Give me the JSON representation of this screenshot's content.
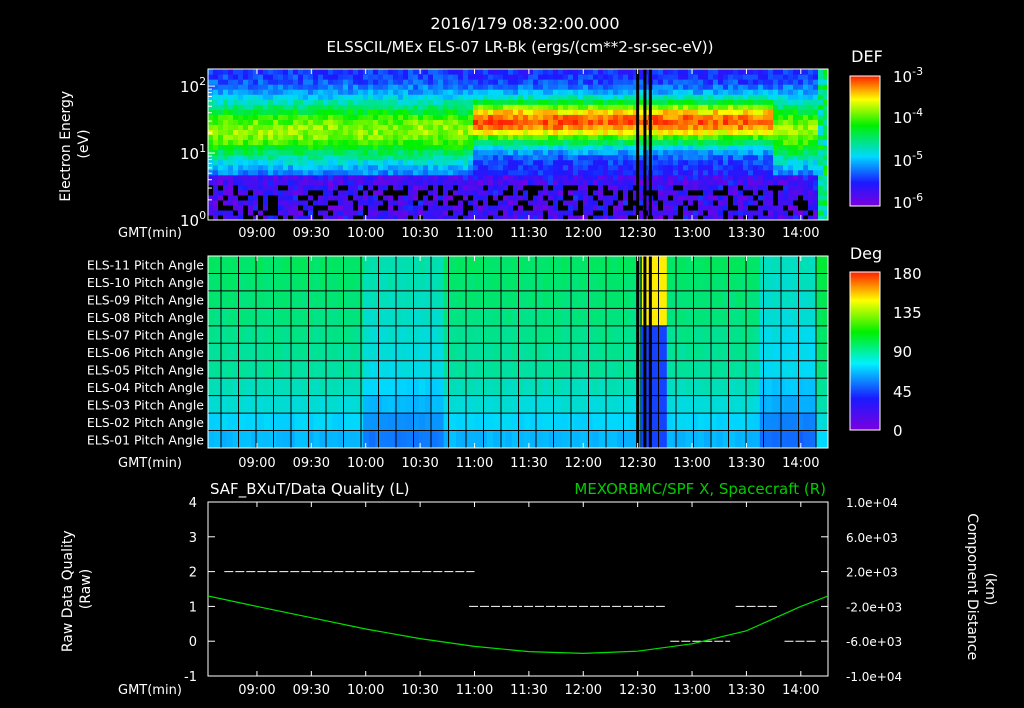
{
  "header": {
    "timestamp": "2016/179 08:32:00.000",
    "title": "ELSSCIL/MEx ELS-07 LR-Bk  (ergs/(cm**2-sr-sec-eV))"
  },
  "time_axis": {
    "label": "GMT(min)",
    "ticks": [
      "09:00",
      "09:30",
      "10:00",
      "10:30",
      "11:00",
      "11:30",
      "12:00",
      "12:30",
      "13:00",
      "13:30",
      "14:00"
    ]
  },
  "chart_data": [
    {
      "type": "heatmap",
      "name": "electron-spectrogram",
      "ylabel_lines": [
        "Electron Energy",
        "(eV)"
      ],
      "y_scale": "log",
      "yticks": [
        {
          "base": "10",
          "exp": "2"
        },
        {
          "base": "10",
          "exp": "1"
        },
        {
          "base": "10",
          "exp": "0"
        }
      ],
      "ylim": [
        1,
        180
      ],
      "colorbar": {
        "title": "DEF",
        "scale": "log",
        "ticks": [
          {
            "base": "10",
            "exp": "-3"
          },
          {
            "base": "10",
            "exp": "-4"
          },
          {
            "base": "10",
            "exp": "-5"
          },
          {
            "base": "10",
            "exp": "-6"
          }
        ]
      },
      "xlim_hours": [
        8.55,
        14.25
      ],
      "features": [
        {
          "kind": "band",
          "energy_eV": [
            15,
            60
          ],
          "level": "green-yellow",
          "from": "11:00",
          "to": "13:45"
        },
        {
          "kind": "band",
          "energy_eV": [
            3,
            10
          ],
          "level": "blue",
          "from": "08:35",
          "to": "14:10"
        },
        {
          "kind": "data-gap",
          "times": [
            "12:30",
            "12:34",
            "12:37"
          ]
        }
      ]
    },
    {
      "type": "heatmap",
      "name": "pitch-angle",
      "rows": [
        "ELS-11 Pitch Angle",
        "ELS-10 Pitch Angle",
        "ELS-09 Pitch Angle",
        "ELS-08 Pitch Angle",
        "ELS-07 Pitch Angle",
        "ELS-06 Pitch Angle",
        "ELS-05 Pitch Angle",
        "ELS-04 Pitch Angle",
        "ELS-03 Pitch Angle",
        "ELS-02 Pitch Angle",
        "ELS-01 Pitch Angle"
      ],
      "colorbar": {
        "title": "Deg",
        "ticks": [
          "180",
          "135",
          "90",
          "45",
          "0"
        ],
        "range": [
          0,
          180
        ]
      },
      "pitch_angle_deg_approx": [
        95,
        93,
        92,
        90,
        88,
        86,
        85,
        80,
        75,
        68,
        62
      ]
    },
    {
      "type": "line",
      "left_title": "SAF_BXuT/Data Quality (L)",
      "right_title": "MEXORBMC/SPF X, Spacecraft (R)",
      "ylabel_left_lines": [
        "Raw Data Quality",
        "(Raw)"
      ],
      "ylabel_right_lines": [
        "Component Distance",
        "(km)"
      ],
      "ylim_left": [
        -1,
        4
      ],
      "yticks_left": [
        "4",
        "3",
        "2",
        "1",
        "0",
        "-1"
      ],
      "ylim_right": [
        -10000,
        10000
      ],
      "yticks_right": [
        "1.0e+04",
        "6.0e+03",
        "2.0e+03",
        "-2.0e+03",
        "-6.0e+03",
        "-1.0e+04"
      ],
      "series": [
        {
          "name": "SAF_BXuT/Data Quality",
          "color": "#ffffff",
          "style": "dashed",
          "segments": [
            {
              "from": 8.7,
              "to": 11.0,
              "y": 2
            },
            {
              "from": 10.95,
              "to": 12.75,
              "y": 1
            },
            {
              "from": 13.4,
              "to": 13.78,
              "y": 1
            },
            {
              "from": 12.8,
              "to": 13.35,
              "y": 0
            },
            {
              "from": 13.85,
              "to": 14.15,
              "y": 0
            }
          ]
        },
        {
          "name": "MEXORBMC/SPF X, Spacecraft",
          "color": "#00e000",
          "x_hours": [
            8.55,
            9.0,
            9.5,
            10.0,
            10.5,
            11.0,
            11.5,
            12.0,
            12.5,
            13.0,
            13.5,
            14.0,
            14.25
          ],
          "y_km": [
            -800,
            -2000,
            -3300,
            -4600,
            -5700,
            -6600,
            -7200,
            -7400,
            -7150,
            -6300,
            -4800,
            -2000,
            -800
          ]
        }
      ]
    }
  ],
  "colors": {
    "background": "#000000",
    "frame": "#ffffff",
    "dq_line": "#ffffff",
    "orbit_line": "#00e000",
    "right_title": "#00cc00"
  }
}
